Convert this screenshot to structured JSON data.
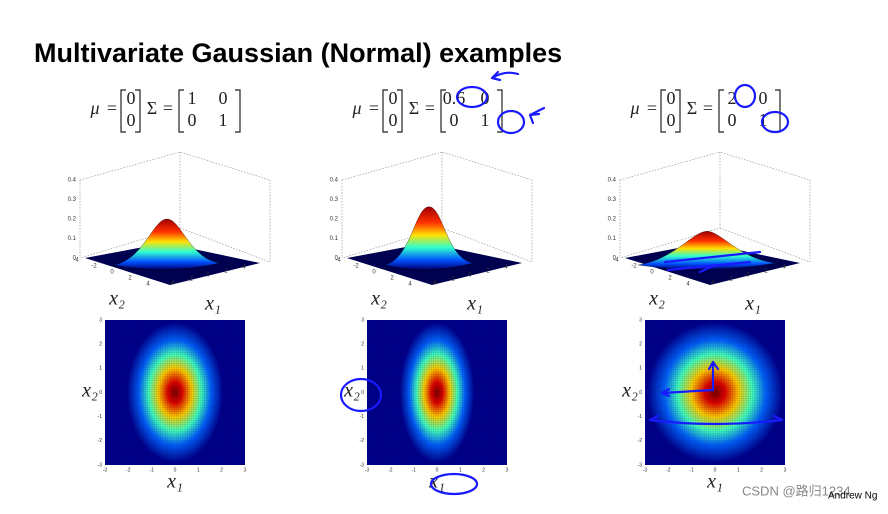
{
  "title": "Multivariate Gaussian (Normal) examples",
  "symbols": {
    "mu": "μ",
    "sigma": "Σ",
    "equals": "="
  },
  "panels": [
    {
      "mu": [
        0,
        0
      ],
      "sigma": [
        [
          1,
          0
        ],
        [
          0,
          1
        ]
      ]
    },
    {
      "mu": [
        0,
        0
      ],
      "sigma": [
        [
          0.6,
          0
        ],
        [
          0,
          1
        ]
      ]
    },
    {
      "mu": [
        0,
        0
      ],
      "sigma": [
        [
          2,
          0
        ],
        [
          0,
          1
        ]
      ]
    }
  ],
  "axis_labels": {
    "x1": "x₁",
    "x2": "x₂"
  },
  "surface_zticks": [
    0.4,
    0.3,
    0.2,
    0.1,
    0
  ],
  "surface_ticks": [
    -4,
    -2,
    0,
    2,
    4
  ],
  "heatmap_ticks": [
    3,
    2,
    1,
    0,
    -1,
    -2,
    -3
  ],
  "watermark": "CSDN @路归1234",
  "author": "Andrew Ng"
}
